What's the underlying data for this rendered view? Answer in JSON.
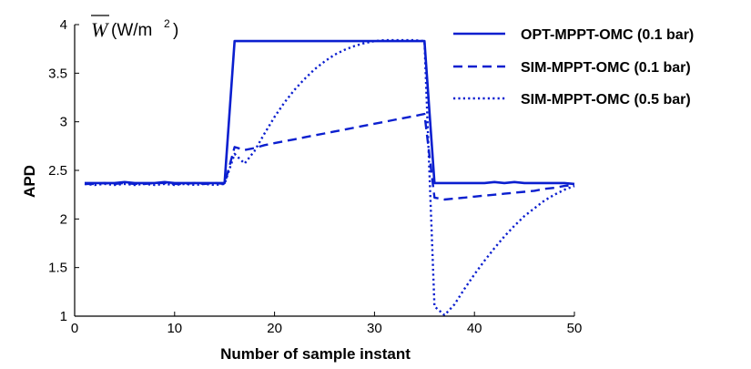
{
  "chart_data": {
    "type": "line",
    "xlabel": "Number of sample instant",
    "ylabel": "APD",
    "xlim": [
      0,
      50
    ],
    "ylim": [
      1,
      4
    ],
    "xticks": [
      0,
      10,
      20,
      30,
      40,
      50
    ],
    "yticks": [
      1,
      1.5,
      2,
      2.5,
      3,
      3.5,
      4
    ],
    "grid": false,
    "legend_position": "top-right",
    "line_color": "#0b1fcf",
    "unit_annotation": {
      "variable": "W",
      "unit_prefix": "(W/m",
      "unit_power": "2",
      "unit_suffix": ")"
    },
    "series": [
      {
        "name": "OPT-MPPT-OMC (0.1 bar)",
        "style": "solid",
        "x": [
          1,
          2,
          3,
          4,
          5,
          6,
          7,
          8,
          9,
          10,
          11,
          12,
          13,
          14,
          15,
          16,
          17,
          18,
          19,
          20,
          21,
          22,
          23,
          24,
          25,
          26,
          27,
          28,
          29,
          30,
          31,
          32,
          33,
          34,
          35,
          36,
          37,
          38,
          39,
          40,
          41,
          42,
          43,
          44,
          45,
          46,
          47,
          48,
          49,
          50
        ],
        "y": [
          2.37,
          2.37,
          2.37,
          2.37,
          2.38,
          2.37,
          2.37,
          2.37,
          2.38,
          2.37,
          2.37,
          2.37,
          2.37,
          2.37,
          2.37,
          3.83,
          3.83,
          3.83,
          3.83,
          3.83,
          3.83,
          3.83,
          3.83,
          3.83,
          3.83,
          3.83,
          3.83,
          3.83,
          3.83,
          3.83,
          3.83,
          3.83,
          3.83,
          3.83,
          3.83,
          2.37,
          2.37,
          2.37,
          2.37,
          2.37,
          2.37,
          2.38,
          2.37,
          2.38,
          2.37,
          2.37,
          2.37,
          2.37,
          2.37,
          2.36
        ]
      },
      {
        "name": "SIM-MPPT-OMC (0.1 bar)",
        "style": "dashed",
        "x": [
          1,
          2,
          3,
          4,
          5,
          6,
          7,
          8,
          9,
          10,
          11,
          12,
          13,
          14,
          15,
          16,
          17,
          18,
          19,
          20,
          21,
          22,
          23,
          24,
          25,
          26,
          27,
          28,
          29,
          30,
          31,
          32,
          33,
          34,
          35,
          36,
          37,
          38,
          39,
          40,
          41,
          42,
          43,
          44,
          45,
          46,
          47,
          48,
          49,
          50
        ],
        "y": [
          2.36,
          2.36,
          2.37,
          2.36,
          2.37,
          2.36,
          2.36,
          2.37,
          2.37,
          2.36,
          2.36,
          2.37,
          2.36,
          2.37,
          2.36,
          2.74,
          2.71,
          2.73,
          2.76,
          2.78,
          2.8,
          2.82,
          2.84,
          2.86,
          2.88,
          2.9,
          2.92,
          2.94,
          2.96,
          2.98,
          3,
          3.02,
          3.04,
          3.06,
          3.08,
          2.22,
          2.2,
          2.21,
          2.22,
          2.23,
          2.24,
          2.25,
          2.26,
          2.27,
          2.28,
          2.29,
          2.31,
          2.32,
          2.34,
          2.35
        ]
      },
      {
        "name": "SIM-MPPT-OMC (0.5 bar)",
        "style": "dotted",
        "x": [
          1,
          2,
          3,
          4,
          5,
          6,
          7,
          8,
          9,
          10,
          11,
          12,
          13,
          14,
          15,
          16,
          17,
          18,
          19,
          20,
          21,
          22,
          23,
          24,
          25,
          26,
          27,
          28,
          29,
          30,
          31,
          32,
          33,
          34,
          35,
          36,
          37,
          38,
          39,
          40,
          41,
          42,
          43,
          44,
          45,
          46,
          47,
          48,
          49,
          50
        ],
        "y": [
          2.36,
          2.35,
          2.36,
          2.35,
          2.36,
          2.35,
          2.36,
          2.35,
          2.36,
          2.35,
          2.36,
          2.35,
          2.36,
          2.35,
          2.36,
          2.67,
          2.57,
          2.7,
          2.88,
          3.05,
          3.2,
          3.33,
          3.44,
          3.54,
          3.62,
          3.69,
          3.74,
          3.78,
          3.81,
          3.83,
          3.84,
          3.84,
          3.84,
          3.84,
          3.83,
          1.1,
          1.01,
          1.12,
          1.28,
          1.43,
          1.57,
          1.7,
          1.82,
          1.93,
          2.03,
          2.11,
          2.19,
          2.25,
          2.3,
          2.34
        ]
      }
    ]
  }
}
